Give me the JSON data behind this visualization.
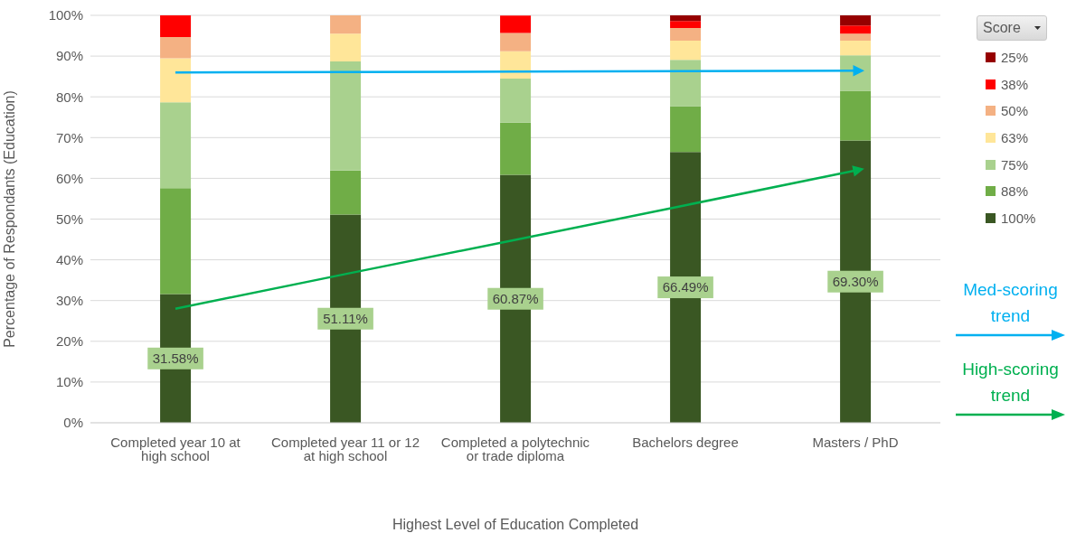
{
  "chart_data": {
    "type": "bar",
    "stacked": true,
    "xlabel": "Highest Level of Education Completed",
    "ylabel": "Percentage of Respondants (Education)",
    "legend_title": "Score",
    "categories": [
      "Completed year 10 at high school",
      "Completed year 11 or 12 at high school",
      "Completed a polytechnic or trade diploma",
      "Bachelors degree",
      "Masters / PhD"
    ],
    "series": [
      {
        "name": "100%",
        "color": "#3a5723",
        "values": [
          31.58,
          51.11,
          60.87,
          66.49,
          69.3
        ],
        "value_labels": [
          "31.58%",
          "51.11%",
          "60.87%",
          "66.49%",
          "69.30%"
        ]
      },
      {
        "name": "88%",
        "color": "#70ad47",
        "values": [
          26.0,
          10.8,
          12.8,
          11.2,
          12.2
        ]
      },
      {
        "name": "75%",
        "color": "#a9d18e",
        "values": [
          21.1,
          26.8,
          10.8,
          11.4,
          8.7
        ]
      },
      {
        "name": "63%",
        "color": "#ffe699",
        "values": [
          10.8,
          6.8,
          6.7,
          4.7,
          3.6
        ]
      },
      {
        "name": "50%",
        "color": "#f4b183",
        "values": [
          5.2,
          4.5,
          4.5,
          3.1,
          1.7
        ]
      },
      {
        "name": "38%",
        "color": "#ff0000",
        "values": [
          5.3,
          0,
          4.3,
          1.7,
          2.0
        ]
      },
      {
        "name": "25%",
        "color": "#960000",
        "values": [
          0,
          0,
          0,
          1.4,
          2.5
        ]
      },
      {
        "name": "Med-scoring trend",
        "type": "line",
        "color": "#00b0f0",
        "values": [
          86.0,
          86.1,
          86.2,
          86.3,
          86.4
        ]
      },
      {
        "name": "High-scoring trend",
        "type": "line",
        "color": "#00b050",
        "values": [
          28.0,
          36.5,
          44.9,
          53.4,
          61.9
        ]
      }
    ],
    "ylim": [
      0,
      100
    ],
    "yticks": [
      {
        "value": 0,
        "label": "0%"
      },
      {
        "value": 10,
        "label": "10%"
      },
      {
        "value": 20,
        "label": "20%"
      },
      {
        "value": 30,
        "label": "30%"
      },
      {
        "value": 40,
        "label": "40%"
      },
      {
        "value": 50,
        "label": "50%"
      },
      {
        "value": 60,
        "label": "60%"
      },
      {
        "value": 70,
        "label": "70%"
      },
      {
        "value": 80,
        "label": "80%"
      },
      {
        "value": 90,
        "label": "90%"
      },
      {
        "value": 100,
        "label": "100%"
      }
    ],
    "grid": "y",
    "legend": "right"
  }
}
